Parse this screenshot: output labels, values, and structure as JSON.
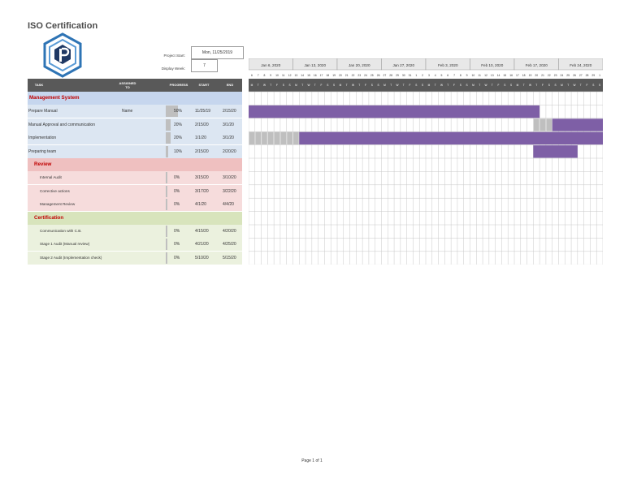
{
  "title": "ISO Certification",
  "project": {
    "start_label": "Project Start:",
    "start_value": "Mon, 11/25/2019",
    "week_label": "Display Week:",
    "week_value": "7"
  },
  "columns": {
    "task": "TASK",
    "assigned": "ASSIGNED TO",
    "progress": "PROGRESS",
    "start": "START",
    "end": "END"
  },
  "rows": [
    {
      "kind": "section",
      "task": "Management System",
      "bg": "#c6d6ee",
      "color": "#c00000"
    },
    {
      "kind": "task",
      "task": "Prepare Manual",
      "assigned": "Name",
      "progress": "50%",
      "pct": 0.5,
      "start": "11/25/19",
      "end": "2/15/20",
      "bg": "#dce6f2"
    },
    {
      "kind": "task",
      "task": "Manual Approval and communication",
      "assigned": "",
      "progress": "20%",
      "pct": 0.2,
      "start": "2/15/20",
      "end": "3/1/20",
      "bg": "#dce6f2"
    },
    {
      "kind": "task",
      "task": "Implementation",
      "assigned": "",
      "progress": "20%",
      "pct": 0.2,
      "start": "1/1/20",
      "end": "3/1/20",
      "bg": "#dce6f2"
    },
    {
      "kind": "task",
      "task": "Preparing team",
      "assigned": "",
      "progress": "10%",
      "pct": 0.1,
      "start": "2/15/20",
      "end": "2/20/20",
      "bg": "#dce6f2"
    },
    {
      "kind": "section",
      "task": "Review",
      "bg": "#efc0c0",
      "color": "#c00000"
    },
    {
      "kind": "task",
      "task": "Internal Audit",
      "assigned": "",
      "progress": "0%",
      "pct": 0,
      "start": "3/15/20",
      "end": "3/10/20",
      "bg": "#f6dcdc",
      "indent": true
    },
    {
      "kind": "task",
      "task": "Corrective actions",
      "assigned": "",
      "progress": "0%",
      "pct": 0,
      "start": "3/17/20",
      "end": "3/22/20",
      "bg": "#f6dcdc",
      "indent": true
    },
    {
      "kind": "task",
      "task": "Management Review",
      "assigned": "",
      "progress": "0%",
      "pct": 0,
      "start": "4/1/20",
      "end": "4/4/20",
      "bg": "#f6dcdc",
      "indent": true
    },
    {
      "kind": "section",
      "task": "Certification",
      "bg": "#d8e4bc",
      "color": "#c00000"
    },
    {
      "kind": "task",
      "task": "Communication with C.B.",
      "assigned": "",
      "progress": "0%",
      "pct": 0,
      "start": "4/15/20",
      "end": "4/20/20",
      "bg": "#ebf1de",
      "indent": true
    },
    {
      "kind": "task",
      "task": "Stage 1 Audit (Manual review)",
      "assigned": "",
      "progress": "0%",
      "pct": 0,
      "start": "4/21/20",
      "end": "4/25/20",
      "bg": "#ebf1de",
      "indent": true
    },
    {
      "kind": "task",
      "task": "Stage 2 Audit (Implementation check)",
      "assigned": "",
      "progress": "0%",
      "pct": 0,
      "start": "5/10/20",
      "end": "5/15/20",
      "bg": "#ebf1de",
      "indent": true
    }
  ],
  "timeline": {
    "weeks": [
      "Jan 6, 2020",
      "Jan 13, 2020",
      "Jan 20, 2020",
      "Jan 27, 2020",
      "Feb 3, 2020",
      "Feb 10, 2020",
      "Feb 17, 2020",
      "Feb 24, 2020"
    ],
    "day_numbers": [
      "6",
      "7",
      "8",
      "9",
      "10",
      "11",
      "12",
      "13",
      "14",
      "15",
      "16",
      "17",
      "18",
      "19",
      "20",
      "21",
      "22",
      "23",
      "24",
      "25",
      "26",
      "27",
      "28",
      "29",
      "30",
      "31",
      "1",
      "2",
      "3",
      "4",
      "5",
      "6",
      "7",
      "8",
      "9",
      "10",
      "11",
      "12",
      "13",
      "14",
      "15",
      "16",
      "17",
      "18",
      "19",
      "20",
      "21",
      "22",
      "23",
      "24",
      "25",
      "26",
      "27",
      "28",
      "29",
      "1"
    ],
    "day_letters": [
      "M",
      "T",
      "W",
      "T",
      "F",
      "S",
      "S"
    ],
    "bars": [
      {
        "row": 1,
        "done_start": 0,
        "done_end": 0,
        "bar_start": 0,
        "bar_end": 46
      },
      {
        "row": 2,
        "done_start": 45,
        "done_end": 48,
        "bar_start": 48,
        "bar_end": 62
      },
      {
        "row": 3,
        "done_start": 0,
        "done_end": 8,
        "bar_start": 8,
        "bar_end": 62
      },
      {
        "row": 4,
        "done_start": 0,
        "done_end": 0,
        "bar_start": 45,
        "bar_end": 52
      }
    ],
    "bar_color": "#7e5fa6",
    "done_color": "#bfbfbf"
  },
  "footer": "Page 1 of 1"
}
